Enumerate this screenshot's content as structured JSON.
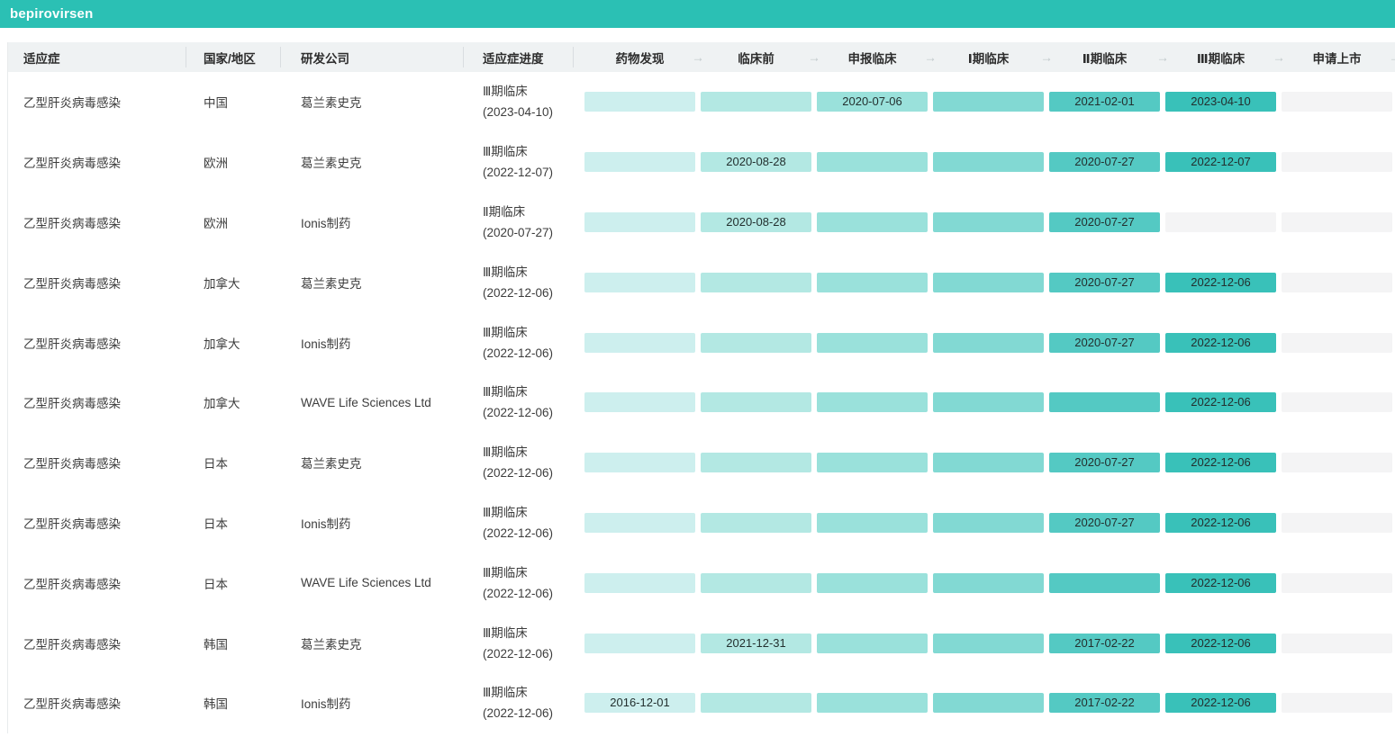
{
  "title": "bepirovirsen",
  "accent_color": "#2bc0b4",
  "header_bg": "#eff2f3",
  "empty_color": "#f4f4f5",
  "stage_colors": [
    "#cdefee",
    "#b3e8e3",
    "#9ae1db",
    "#82d9d3",
    "#54c9c3",
    "#39c1b9"
  ],
  "arrow_glyph": "→",
  "columns": {
    "indication": "适应症",
    "region": "国家/地区",
    "company": "研发公司",
    "progress": "适应症进度"
  },
  "stages": [
    "药物发现",
    "临床前",
    "申报临床",
    "Ⅰ期临床",
    "Ⅱ期临床",
    "Ⅲ期临床",
    "申请上市"
  ],
  "rows": [
    {
      "indication": "乙型肝炎病毒感染",
      "region": "中国",
      "company": "葛兰素史克",
      "progress_stage": "Ⅲ期临床",
      "progress_date": "(2023-04-10)",
      "stages": [
        {
          "filled": true,
          "date": ""
        },
        {
          "filled": true,
          "date": ""
        },
        {
          "filled": true,
          "date": "2020-07-06"
        },
        {
          "filled": true,
          "date": ""
        },
        {
          "filled": true,
          "date": "2021-02-01"
        },
        {
          "filled": true,
          "date": "2023-04-10"
        },
        {
          "filled": false,
          "date": ""
        }
      ]
    },
    {
      "indication": "乙型肝炎病毒感染",
      "region": "欧洲",
      "company": "葛兰素史克",
      "progress_stage": "Ⅲ期临床",
      "progress_date": "(2022-12-07)",
      "stages": [
        {
          "filled": true,
          "date": ""
        },
        {
          "filled": true,
          "date": "2020-08-28"
        },
        {
          "filled": true,
          "date": ""
        },
        {
          "filled": true,
          "date": ""
        },
        {
          "filled": true,
          "date": "2020-07-27"
        },
        {
          "filled": true,
          "date": "2022-12-07"
        },
        {
          "filled": false,
          "date": ""
        }
      ]
    },
    {
      "indication": "乙型肝炎病毒感染",
      "region": "欧洲",
      "company": "Ionis制药",
      "progress_stage": "Ⅱ期临床",
      "progress_date": "(2020-07-27)",
      "stages": [
        {
          "filled": true,
          "date": ""
        },
        {
          "filled": true,
          "date": "2020-08-28"
        },
        {
          "filled": true,
          "date": ""
        },
        {
          "filled": true,
          "date": ""
        },
        {
          "filled": true,
          "date": "2020-07-27"
        },
        {
          "filled": false,
          "date": ""
        },
        {
          "filled": false,
          "date": ""
        }
      ]
    },
    {
      "indication": "乙型肝炎病毒感染",
      "region": "加拿大",
      "company": "葛兰素史克",
      "progress_stage": "Ⅲ期临床",
      "progress_date": "(2022-12-06)",
      "stages": [
        {
          "filled": true,
          "date": ""
        },
        {
          "filled": true,
          "date": ""
        },
        {
          "filled": true,
          "date": ""
        },
        {
          "filled": true,
          "date": ""
        },
        {
          "filled": true,
          "date": "2020-07-27"
        },
        {
          "filled": true,
          "date": "2022-12-06"
        },
        {
          "filled": false,
          "date": ""
        }
      ]
    },
    {
      "indication": "乙型肝炎病毒感染",
      "region": "加拿大",
      "company": "Ionis制药",
      "progress_stage": "Ⅲ期临床",
      "progress_date": "(2022-12-06)",
      "stages": [
        {
          "filled": true,
          "date": ""
        },
        {
          "filled": true,
          "date": ""
        },
        {
          "filled": true,
          "date": ""
        },
        {
          "filled": true,
          "date": ""
        },
        {
          "filled": true,
          "date": "2020-07-27"
        },
        {
          "filled": true,
          "date": "2022-12-06"
        },
        {
          "filled": false,
          "date": ""
        }
      ]
    },
    {
      "indication": "乙型肝炎病毒感染",
      "region": "加拿大",
      "company": "WAVE Life Sciences Ltd",
      "progress_stage": "Ⅲ期临床",
      "progress_date": "(2022-12-06)",
      "stages": [
        {
          "filled": true,
          "date": ""
        },
        {
          "filled": true,
          "date": ""
        },
        {
          "filled": true,
          "date": ""
        },
        {
          "filled": true,
          "date": ""
        },
        {
          "filled": true,
          "date": ""
        },
        {
          "filled": true,
          "date": "2022-12-06"
        },
        {
          "filled": false,
          "date": ""
        }
      ]
    },
    {
      "indication": "乙型肝炎病毒感染",
      "region": "日本",
      "company": "葛兰素史克",
      "progress_stage": "Ⅲ期临床",
      "progress_date": "(2022-12-06)",
      "stages": [
        {
          "filled": true,
          "date": ""
        },
        {
          "filled": true,
          "date": ""
        },
        {
          "filled": true,
          "date": ""
        },
        {
          "filled": true,
          "date": ""
        },
        {
          "filled": true,
          "date": "2020-07-27"
        },
        {
          "filled": true,
          "date": "2022-12-06"
        },
        {
          "filled": false,
          "date": ""
        }
      ]
    },
    {
      "indication": "乙型肝炎病毒感染",
      "region": "日本",
      "company": "Ionis制药",
      "progress_stage": "Ⅲ期临床",
      "progress_date": "(2022-12-06)",
      "stages": [
        {
          "filled": true,
          "date": ""
        },
        {
          "filled": true,
          "date": ""
        },
        {
          "filled": true,
          "date": ""
        },
        {
          "filled": true,
          "date": ""
        },
        {
          "filled": true,
          "date": "2020-07-27"
        },
        {
          "filled": true,
          "date": "2022-12-06"
        },
        {
          "filled": false,
          "date": ""
        }
      ]
    },
    {
      "indication": "乙型肝炎病毒感染",
      "region": "日本",
      "company": "WAVE Life Sciences Ltd",
      "progress_stage": "Ⅲ期临床",
      "progress_date": "(2022-12-06)",
      "stages": [
        {
          "filled": true,
          "date": ""
        },
        {
          "filled": true,
          "date": ""
        },
        {
          "filled": true,
          "date": ""
        },
        {
          "filled": true,
          "date": ""
        },
        {
          "filled": true,
          "date": ""
        },
        {
          "filled": true,
          "date": "2022-12-06"
        },
        {
          "filled": false,
          "date": ""
        }
      ]
    },
    {
      "indication": "乙型肝炎病毒感染",
      "region": "韩国",
      "company": "葛兰素史克",
      "progress_stage": "Ⅲ期临床",
      "progress_date": "(2022-12-06)",
      "stages": [
        {
          "filled": true,
          "date": ""
        },
        {
          "filled": true,
          "date": "2021-12-31"
        },
        {
          "filled": true,
          "date": ""
        },
        {
          "filled": true,
          "date": ""
        },
        {
          "filled": true,
          "date": "2017-02-22"
        },
        {
          "filled": true,
          "date": "2022-12-06"
        },
        {
          "filled": false,
          "date": ""
        }
      ]
    },
    {
      "indication": "乙型肝炎病毒感染",
      "region": "韩国",
      "company": "Ionis制药",
      "progress_stage": "Ⅲ期临床",
      "progress_date": "(2022-12-06)",
      "stages": [
        {
          "filled": true,
          "date": "2016-12-01"
        },
        {
          "filled": true,
          "date": ""
        },
        {
          "filled": true,
          "date": ""
        },
        {
          "filled": true,
          "date": ""
        },
        {
          "filled": true,
          "date": "2017-02-22"
        },
        {
          "filled": true,
          "date": "2022-12-06"
        },
        {
          "filled": false,
          "date": ""
        }
      ]
    }
  ]
}
